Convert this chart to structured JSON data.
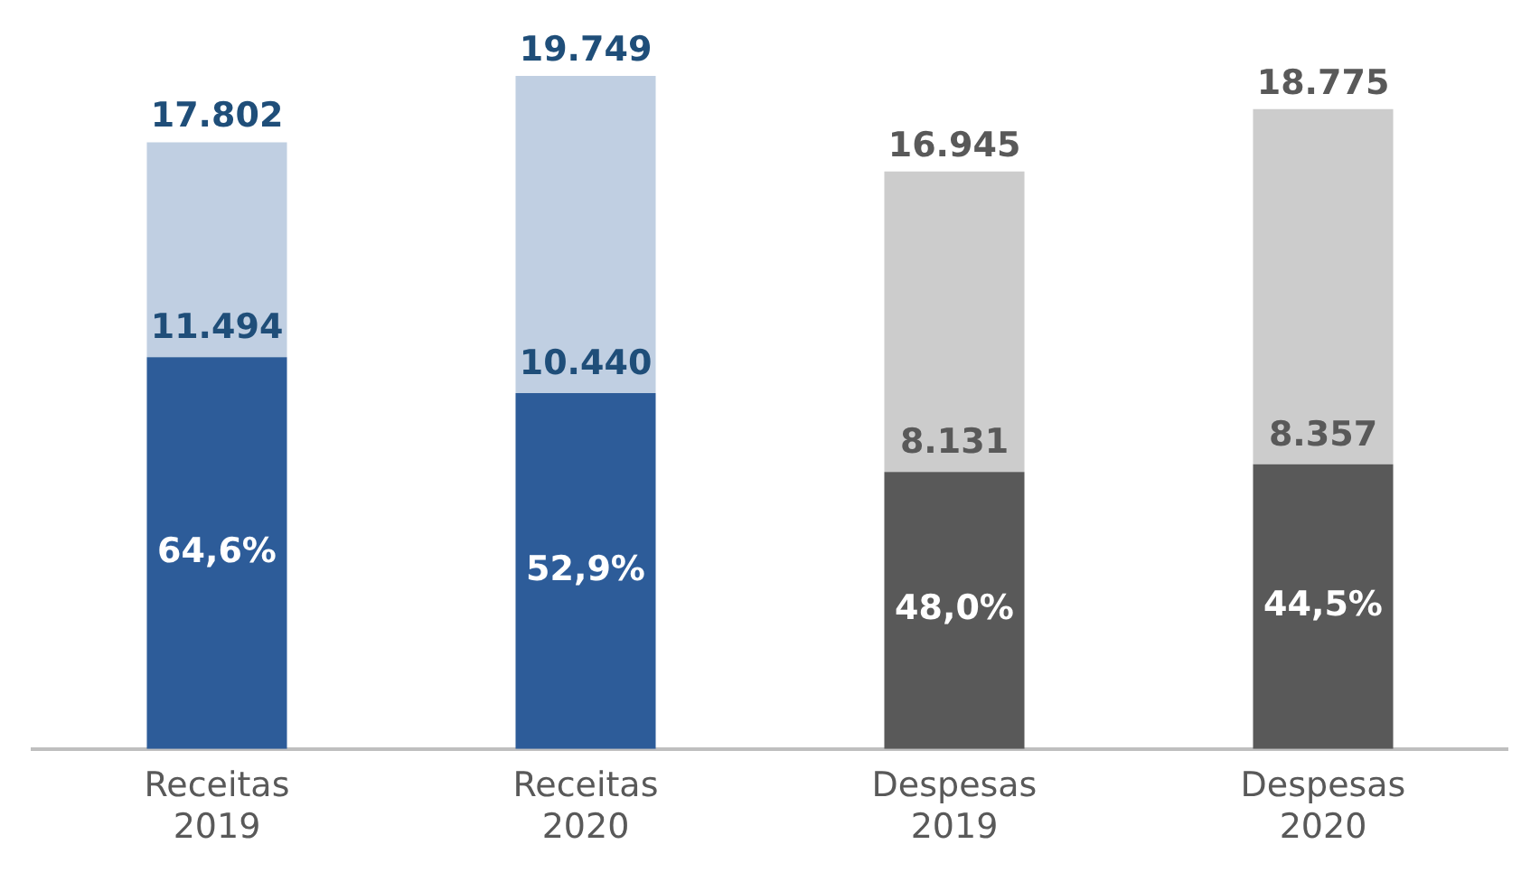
{
  "chart_data": {
    "type": "bar",
    "stacked": true,
    "legend": false,
    "grid": false,
    "categories": [
      "Receitas 2019",
      "Receitas 2020",
      "Despesas 2019",
      "Despesas 2020"
    ],
    "series": [
      {
        "colors": [
          "#2d5c99",
          "#2d5c99",
          "#595959",
          "#595959"
        ],
        "values": [
          11494,
          10440,
          8131,
          8357
        ],
        "value_labels": [
          "11.494",
          "10.440",
          "8.131",
          "8.357"
        ]
      },
      {
        "colors": [
          "#c0cfe2",
          "#c0cfe2",
          "#cccccc",
          "#cccccc"
        ],
        "values": [
          6308,
          9309,
          8814,
          10418
        ]
      }
    ],
    "totals": [
      "17.802",
      "19.749",
      "16.945",
      "18.775"
    ],
    "annotations": [
      "64,6%",
      "52,9%",
      "48,0%",
      "44,5%"
    ]
  }
}
